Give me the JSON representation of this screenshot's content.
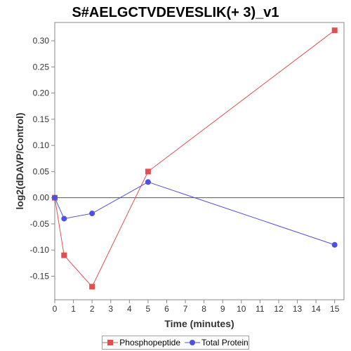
{
  "chart_data": {
    "type": "line",
    "title": "S#AELGCTVDEVESLIK(+ 3)_v1",
    "xlabel": "Time (minutes)",
    "ylabel": "log2(dDAVP/Control)",
    "xlim": [
      0,
      15.5
    ],
    "ylim": [
      -0.195,
      0.335
    ],
    "x_ticks": [
      0,
      1,
      2,
      3,
      4,
      5,
      6,
      7,
      8,
      9,
      10,
      11,
      12,
      13,
      14,
      15
    ],
    "y_ticks": [
      -0.15,
      -0.1,
      -0.05,
      0.0,
      0.05,
      0.1,
      0.15,
      0.2,
      0.25,
      0.3
    ],
    "y_tick_labels": [
      "-0.15",
      "-0.10",
      "-0.05",
      "0.00",
      "0.05",
      "0.10",
      "0.15",
      "0.20",
      "0.25",
      "0.30"
    ],
    "zero_line": true,
    "grid": false,
    "legend_position": "bottom",
    "series": [
      {
        "name": "Phosphopeptide",
        "marker": "square",
        "color": "#e05050",
        "x": [
          0,
          0.5,
          2,
          5,
          15
        ],
        "y": [
          0.0,
          -0.11,
          -0.17,
          0.05,
          0.32
        ]
      },
      {
        "name": "Total Protein",
        "marker": "circle",
        "color": "#5050e0",
        "x": [
          0,
          0.5,
          2,
          5,
          15
        ],
        "y": [
          0.0,
          -0.04,
          -0.03,
          0.03,
          -0.09
        ]
      }
    ]
  }
}
